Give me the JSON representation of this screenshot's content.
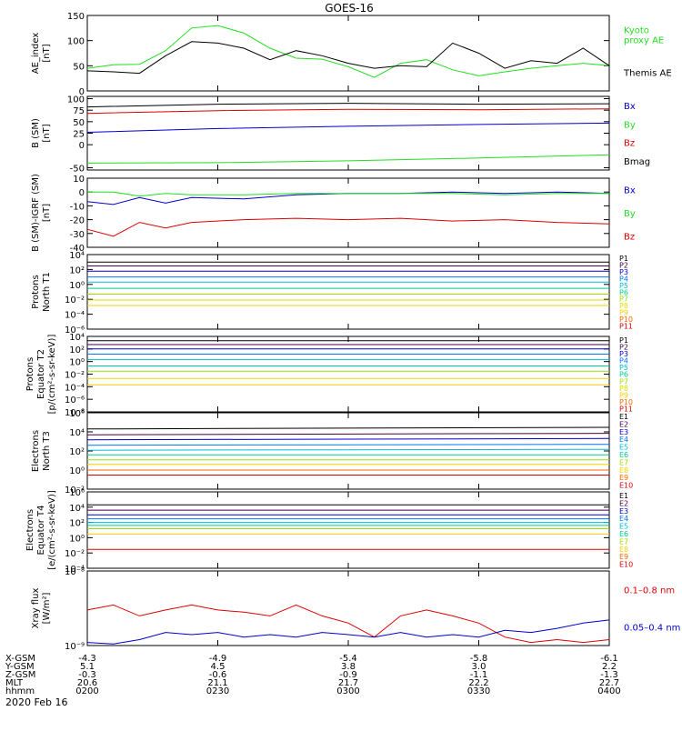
{
  "title": "GOES-16",
  "date_label": "2020 Feb 16",
  "orbit_labels": [
    "X-GSM",
    "Y-GSM",
    "Z-GSM",
    "MLT",
    "hhmm"
  ],
  "orbit_columns": [
    {
      "x": "-4.3",
      "y": "5.1",
      "z": "-0.3",
      "mlt": "20.6",
      "hhmm": "0200"
    },
    {
      "x": "-4.9",
      "y": "4.5",
      "z": "-0.6",
      "mlt": "21.1",
      "hhmm": "0230"
    },
    {
      "x": "-5.4",
      "y": "3.8",
      "z": "-0.9",
      "mlt": "21.7",
      "hhmm": "0300"
    },
    {
      "x": "-5.8",
      "y": "3.0",
      "z": "-1.1",
      "mlt": "22.2",
      "hhmm": "0330"
    },
    {
      "x": "-6.1",
      "y": "2.2",
      "z": "-1.3",
      "mlt": "22.7",
      "hhmm": "0400"
    }
  ],
  "chart_data": [
    {
      "type": "line",
      "id": "ae",
      "ylabel": [
        "AE_index",
        "[nT]"
      ],
      "ylim": [
        0,
        150
      ],
      "yticks": [
        {
          "v": 0,
          "label": "0"
        },
        {
          "v": 50,
          "label": "50"
        },
        {
          "v": 100,
          "label": "100"
        },
        {
          "v": 150,
          "label": "150"
        }
      ],
      "x": [
        0,
        0.05,
        0.1,
        0.15,
        0.2,
        0.25,
        0.3,
        0.35,
        0.4,
        0.45,
        0.5,
        0.55,
        0.6,
        0.65,
        0.7,
        0.75,
        0.8,
        0.85,
        0.9,
        0.95,
        1.0
      ],
      "series": [
        {
          "name": "Kyoto proxy AE",
          "color": "#22dd22",
          "label_lines": [
            "Kyoto",
            "proxy AE"
          ],
          "values": [
            45,
            52,
            53,
            80,
            125,
            130,
            115,
            85,
            65,
            63,
            48,
            27,
            55,
            62,
            42,
            30,
            38,
            45,
            50,
            55,
            50
          ]
        },
        {
          "name": "Themis AE",
          "color": "#000000",
          "label_lines": [
            "Themis AE"
          ],
          "values": [
            40,
            38,
            35,
            70,
            98,
            95,
            85,
            62,
            80,
            70,
            55,
            45,
            50,
            48,
            95,
            75,
            45,
            60,
            55,
            85,
            50
          ]
        }
      ]
    },
    {
      "type": "line",
      "id": "bsm",
      "ylabel": [
        "B (SM)",
        "[nT]"
      ],
      "ylim": [
        -55,
        105
      ],
      "yticks": [
        {
          "v": -50,
          "label": "-50"
        },
        {
          "v": 0,
          "label": "0"
        },
        {
          "v": 25,
          "label": "25"
        },
        {
          "v": 50,
          "label": "50"
        },
        {
          "v": 75,
          "label": "75"
        },
        {
          "v": 100,
          "label": "100"
        }
      ],
      "x": [
        0,
        0.25,
        0.5,
        0.75,
        1.0
      ],
      "series": [
        {
          "name": "Bx",
          "color": "#0000cc",
          "label_lines": [
            "Bx"
          ],
          "values": [
            27,
            35,
            40,
            44,
            47
          ]
        },
        {
          "name": "By",
          "color": "#22dd22",
          "label_lines": [
            "By"
          ],
          "values": [
            -40,
            -39,
            -35,
            -29,
            -22
          ]
        },
        {
          "name": "Bz",
          "color": "#dd0000",
          "label_lines": [
            "Bz"
          ],
          "values": [
            68,
            74,
            77,
            76,
            78
          ]
        },
        {
          "name": "Bmag",
          "color": "#000000",
          "label_lines": [
            "Bmag"
          ],
          "values": [
            82,
            88,
            90,
            88,
            89
          ]
        }
      ]
    },
    {
      "type": "line",
      "id": "bigrf",
      "ylabel": [
        "B (SM)-IGRF (SM)",
        "[nT]"
      ],
      "ylim": [
        -40,
        10
      ],
      "yticks": [
        {
          "v": -40,
          "label": "-40"
        },
        {
          "v": -30,
          "label": "-30"
        },
        {
          "v": -20,
          "label": "-20"
        },
        {
          "v": -10,
          "label": "-10"
        },
        {
          "v": 0,
          "label": "0"
        },
        {
          "v": 10,
          "label": "10"
        }
      ],
      "x": [
        0,
        0.05,
        0.1,
        0.15,
        0.2,
        0.3,
        0.4,
        0.5,
        0.6,
        0.7,
        0.8,
        0.9,
        1.0
      ],
      "series": [
        {
          "name": "Bx",
          "color": "#0000cc",
          "label_lines": [
            "Bx"
          ],
          "values": [
            -7,
            -9,
            -4,
            -8,
            -4,
            -5,
            -2,
            -1,
            -1,
            0,
            -1,
            0,
            -1
          ]
        },
        {
          "name": "By",
          "color": "#22dd22",
          "label_lines": [
            "By"
          ],
          "values": [
            0,
            0,
            -3,
            -1,
            -2,
            -2,
            -1,
            -1,
            -1,
            -1,
            -2,
            -1,
            -1
          ]
        },
        {
          "name": "Bz",
          "color": "#dd0000",
          "label_lines": [
            "Bz"
          ],
          "values": [
            -27,
            -32,
            -22,
            -26,
            -22,
            -20,
            -19,
            -20,
            -19,
            -21,
            -20,
            -22,
            -23
          ]
        }
      ]
    },
    {
      "type": "line",
      "id": "p_north",
      "scale": "log",
      "ylabel": [
        "Protons",
        "North T1"
      ],
      "ylim": [
        1e-06,
        10000.0
      ],
      "yticks": [
        {
          "v": 1e-06,
          "label": "10⁻⁶"
        },
        {
          "v": 0.0001,
          "label": "10⁻⁴"
        },
        {
          "v": 0.01,
          "label": "10⁻²"
        },
        {
          "v": 1,
          "label": "10⁰"
        },
        {
          "v": 100,
          "label": "10²"
        },
        {
          "v": 10000.0,
          "label": "10⁴"
        }
      ],
      "x": [
        0,
        1.0
      ],
      "series": [
        {
          "name": "P1",
          "color": "#000000",
          "values": [
            1000,
            1000
          ]
        },
        {
          "name": "P2",
          "color": "#440044",
          "values": [
            300,
            300
          ]
        },
        {
          "name": "P3",
          "color": "#0000cc",
          "values": [
            60,
            60
          ]
        },
        {
          "name": "P4",
          "color": "#0077ff",
          "values": [
            10,
            10
          ]
        },
        {
          "name": "P5",
          "color": "#00bbdd",
          "values": [
            2,
            2
          ]
        },
        {
          "name": "P6",
          "color": "#00cc88",
          "values": [
            0.3,
            0.3
          ]
        },
        {
          "name": "P7",
          "color": "#99dd00",
          "values": [
            0.05,
            0.05
          ]
        },
        {
          "name": "P8",
          "color": "#dddd00",
          "values": [
            0.008,
            0.008
          ]
        },
        {
          "name": "P9",
          "color": "#ffcc00",
          "values": [
            0.0015,
            0.0015
          ]
        },
        {
          "name": "P10",
          "color": "#ff6600",
          "values": [
            null,
            null
          ]
        },
        {
          "name": "P11",
          "color": "#dd0000",
          "values": [
            null,
            null
          ]
        }
      ]
    },
    {
      "type": "line",
      "id": "p_eq",
      "scale": "log",
      "ylabel": [
        "Protons",
        "Equator T2",
        "[p/(cm²-s-sr-keV)]"
      ],
      "ylim": [
        1e-08,
        10000.0
      ],
      "yticks": [
        {
          "v": 1e-08,
          "label": "10⁻⁸"
        },
        {
          "v": 1e-06,
          "label": "10⁻⁶"
        },
        {
          "v": 0.0001,
          "label": "10⁻⁴"
        },
        {
          "v": 0.01,
          "label": "10⁻²"
        },
        {
          "v": 1,
          "label": "10⁰"
        },
        {
          "v": 100,
          "label": "10²"
        },
        {
          "v": 10000.0,
          "label": "10⁴"
        }
      ],
      "x": [
        0,
        1.0
      ],
      "series": [
        {
          "name": "P1",
          "color": "#000000",
          "values": [
            2000,
            2000
          ]
        },
        {
          "name": "P2",
          "color": "#440044",
          "values": [
            500,
            500
          ]
        },
        {
          "name": "P3",
          "color": "#0000cc",
          "values": [
            100,
            100
          ]
        },
        {
          "name": "P4",
          "color": "#0077ff",
          "values": [
            15,
            15
          ]
        },
        {
          "name": "P5",
          "color": "#00bbdd",
          "values": [
            2,
            2
          ]
        },
        {
          "name": "P6",
          "color": "#00cc88",
          "values": [
            0.2,
            0.2
          ]
        },
        {
          "name": "P7",
          "color": "#99dd00",
          "values": [
            0.03,
            0.03
          ]
        },
        {
          "name": "P8",
          "color": "#dddd00",
          "values": [
            0.002,
            0.002
          ]
        },
        {
          "name": "P9",
          "color": "#ffcc00",
          "values": [
            0.0002,
            0.0002
          ]
        },
        {
          "name": "P10",
          "color": "#ff6600",
          "values": [
            null,
            null
          ]
        },
        {
          "name": "P11",
          "color": "#dd0000",
          "values": [
            null,
            null
          ]
        }
      ]
    },
    {
      "type": "line",
      "id": "e_north",
      "scale": "log",
      "ylabel": [
        "Electrons",
        "North T3"
      ],
      "ylim": [
        0.01,
        1000000.0
      ],
      "yticks": [
        {
          "v": 0.01,
          "label": "10⁻²"
        },
        {
          "v": 1,
          "label": "10⁰"
        },
        {
          "v": 100,
          "label": "10²"
        },
        {
          "v": 10000.0,
          "label": "10⁴"
        },
        {
          "v": 1000000.0,
          "label": "10⁶"
        }
      ],
      "x": [
        0,
        1.0
      ],
      "series": [
        {
          "name": "E1",
          "color": "#000000",
          "values": [
            20000,
            30000
          ]
        },
        {
          "name": "E2",
          "color": "#440044",
          "values": [
            5000,
            7000
          ]
        },
        {
          "name": "E3",
          "color": "#0000cc",
          "values": [
            1500,
            2000
          ]
        },
        {
          "name": "E4",
          "color": "#0077ff",
          "values": [
            400,
            500
          ]
        },
        {
          "name": "E5",
          "color": "#00bbdd",
          "values": [
            120,
            150
          ]
        },
        {
          "name": "E6",
          "color": "#00cc88",
          "values": [
            40,
            40
          ]
        },
        {
          "name": "E7",
          "color": "#99dd00",
          "values": [
            12,
            12
          ]
        },
        {
          "name": "E8",
          "color": "#ffcc00",
          "values": [
            4,
            4
          ]
        },
        {
          "name": "E9",
          "color": "#ff6600",
          "values": [
            1,
            1
          ]
        },
        {
          "name": "E10",
          "color": "#dd0000",
          "values": [
            0.3,
            0.3
          ]
        }
      ]
    },
    {
      "type": "line",
      "id": "e_eq",
      "scale": "log",
      "ylabel": [
        "Electrons",
        "Equator T4",
        "[e/(cm²-s-sr-keV)]"
      ],
      "ylim": [
        0.0001,
        1000000.0
      ],
      "yticks": [
        {
          "v": 0.0001,
          "label": "10⁻⁴"
        },
        {
          "v": 0.01,
          "label": "10⁻²"
        },
        {
          "v": 1,
          "label": "10⁰"
        },
        {
          "v": 100,
          "label": "10²"
        },
        {
          "v": 10000.0,
          "label": "10⁴"
        },
        {
          "v": 1000000.0,
          "label": "10⁶"
        }
      ],
      "x": [
        0,
        1.0
      ],
      "series": [
        {
          "name": "E1",
          "color": "#000000",
          "values": [
            20000,
            20000
          ]
        },
        {
          "name": "E2",
          "color": "#440044",
          "values": [
            4000,
            4000
          ]
        },
        {
          "name": "E3",
          "color": "#0000cc",
          "values": [
            1000,
            1000
          ]
        },
        {
          "name": "E4",
          "color": "#0077ff",
          "values": [
            300,
            300
          ]
        },
        {
          "name": "E5",
          "color": "#00bbdd",
          "values": [
            100,
            100
          ]
        },
        {
          "name": "E6",
          "color": "#00cc88",
          "values": [
            40,
            40
          ]
        },
        {
          "name": "E7",
          "color": "#99dd00",
          "values": [
            15,
            15
          ]
        },
        {
          "name": "E8",
          "color": "#ffcc00",
          "values": [
            3,
            3
          ]
        },
        {
          "name": "E9",
          "color": "#ff6600",
          "values": [
            null,
            null
          ]
        },
        {
          "name": "E10",
          "color": "#dd0000",
          "values": [
            0.03,
            0.03
          ]
        }
      ]
    },
    {
      "type": "line",
      "id": "xray",
      "scale": "log",
      "ylabel": [
        "Xray flux",
        "[W/m²]"
      ],
      "ylim": [
        1e-09,
        1e-08
      ],
      "yticks": [
        {
          "v": 1e-09,
          "label": "10⁻⁹"
        },
        {
          "v": 1e-08,
          "label": "10⁻⁸"
        }
      ],
      "x": [
        0,
        0.05,
        0.1,
        0.15,
        0.2,
        0.25,
        0.3,
        0.35,
        0.4,
        0.45,
        0.5,
        0.55,
        0.6,
        0.65,
        0.7,
        0.75,
        0.8,
        0.85,
        0.9,
        0.95,
        1.0
      ],
      "series": [
        {
          "name": "0.1-0.8 nm",
          "color": "#dd0000",
          "label_lines": [
            "0.1–0.8 nm"
          ],
          "values": [
            3e-09,
            3.5e-09,
            2.5e-09,
            3e-09,
            3.5e-09,
            3e-09,
            2.8e-09,
            2.5e-09,
            3.5e-09,
            2.5e-09,
            2e-09,
            1.3e-09,
            2.5e-09,
            3e-09,
            2.5e-09,
            2e-09,
            1.3e-09,
            1.1e-09,
            1.2e-09,
            1.1e-09,
            1.2e-09
          ]
        },
        {
          "name": "0.05-0.4 nm",
          "color": "#0000cc",
          "label_lines": [
            "0.05–0.4 nm"
          ],
          "values": [
            1.1e-09,
            1.05e-09,
            1.2e-09,
            1.5e-09,
            1.4e-09,
            1.5e-09,
            1.3e-09,
            1.4e-09,
            1.3e-09,
            1.5e-09,
            1.4e-09,
            1.3e-09,
            1.5e-09,
            1.3e-09,
            1.4e-09,
            1.3e-09,
            1.6e-09,
            1.5e-09,
            1.7e-09,
            2e-09,
            2.2e-09
          ]
        }
      ]
    }
  ]
}
